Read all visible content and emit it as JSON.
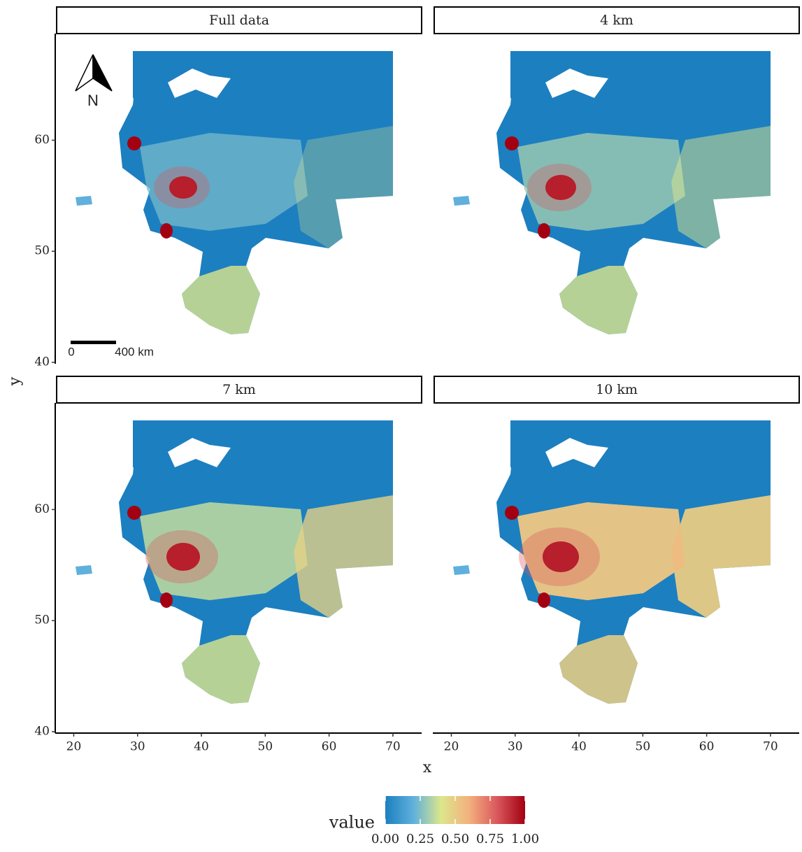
{
  "chart_data": {
    "type": "raster",
    "facets": [
      "Full data",
      "4 km",
      "7 km",
      "10 km"
    ],
    "xlabel": "x",
    "ylabel": "y",
    "xlim": [
      17.1,
      74.5
    ],
    "ylim": [
      40,
      69.6
    ],
    "xticks": [
      20,
      30,
      40,
      50,
      60,
      70
    ],
    "yticks": [
      40,
      50,
      60
    ],
    "legend_title": "value",
    "colorbar": {
      "colors": [
        "#1c7fc0",
        "#5fb0dc",
        "#dde68a",
        "#f3b07e",
        "#d9585c",
        "#a30012"
      ],
      "lim": [
        0,
        1
      ],
      "ticks": [
        {
          "value": 0,
          "label": "0.00"
        },
        {
          "value": 0.25,
          "label": "0.25"
        },
        {
          "value": 0.5,
          "label": "0.50"
        },
        {
          "value": 0.75,
          "label": "0.75"
        },
        {
          "value": 1,
          "label": "1.00"
        }
      ]
    },
    "annotations": {
      "north": "N",
      "scale_start": "0",
      "scale_end": "400 km"
    }
  }
}
